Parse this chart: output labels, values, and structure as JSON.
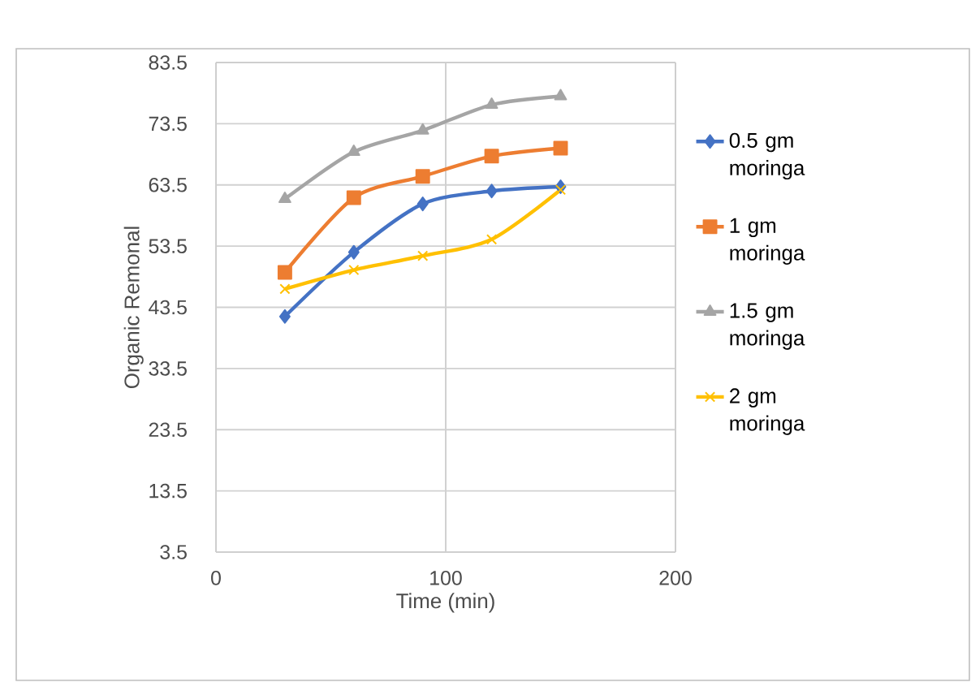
{
  "chart_data": {
    "type": "line",
    "xlabel": "Time (min)",
    "ylabel": "Organic Remonal",
    "x": [
      30,
      60,
      90,
      120,
      150
    ],
    "series": [
      {
        "name": "0.5 gm moringa",
        "color": "#4472c4",
        "marker": "diamond",
        "values": [
          42,
          52.5,
          60.4,
          62.5,
          63.2
        ]
      },
      {
        "name": "1 gm moringa",
        "color": "#ed7d31",
        "marker": "square",
        "values": [
          49.2,
          61.4,
          64.9,
          68.2,
          69.5
        ]
      },
      {
        "name": "1.5 gm moringa",
        "color": "#a5a5a5",
        "marker": "triangle",
        "values": [
          61.2,
          68.9,
          72.4,
          76.6,
          78
        ]
      },
      {
        "name": "2 gm moringa",
        "color": "#ffc000",
        "marker": "cross",
        "values": [
          46.5,
          49.6,
          51.9,
          54.6,
          62.7
        ]
      }
    ],
    "xlim": [
      0,
      200
    ],
    "xticks": [
      0,
      100,
      200
    ],
    "ylim": [
      3.5,
      83.5
    ],
    "yticks": [
      3.5,
      13.5,
      23.5,
      33.5,
      43.5,
      53.5,
      63.5,
      73.5,
      83.5
    ],
    "grid": true,
    "legend": "right"
  }
}
